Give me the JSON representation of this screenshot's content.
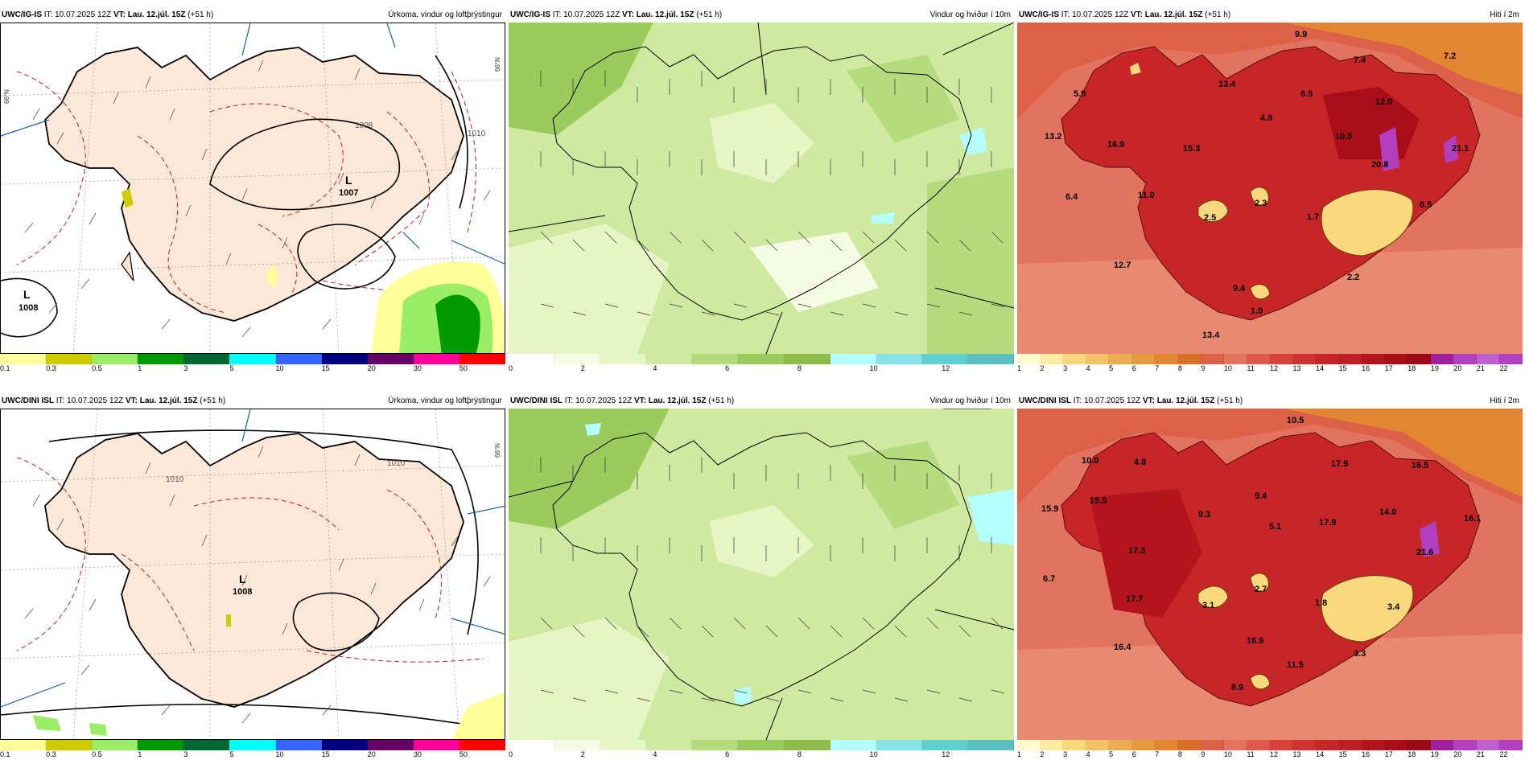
{
  "precip_colors": [
    "#ffff99",
    "#cccc00",
    "#99ee66",
    "#009900",
    "#006633",
    "#00ffff",
    "#3366ff",
    "#000080",
    "#660066",
    "#ff0099",
    "#ff0000"
  ],
  "precip_ticks": [
    "0.1",
    "0.3",
    "0.5",
    "1",
    "3",
    "5",
    "10",
    "15",
    "20",
    "30",
    "50"
  ],
  "wind_colors": [
    "#ffffff",
    "#f6fbe3",
    "#e6f5c3",
    "#cfeaa0",
    "#b4dc7c",
    "#9acb5c",
    "#8ebb49",
    "#b3ffff",
    "#86e3e6",
    "#5fcfcf",
    "#5cbfbf"
  ],
  "wind_ticks": [
    "0",
    "2",
    "4",
    "6",
    "8",
    "10",
    "12"
  ],
  "temp_colors": [
    "#fffbd0",
    "#fdeca0",
    "#f9d77d",
    "#f2c266",
    "#eeac50",
    "#e69a3e",
    "#e28632",
    "#d97028",
    "#dd6048",
    "#e2735e",
    "#df5a4a",
    "#d8403a",
    "#cf3030",
    "#c72628",
    "#bd1f22",
    "#b4151c",
    "#a80e18",
    "#9b0a14",
    "#a020a0",
    "#b040c0",
    "#c060d0",
    "#b040c0"
  ],
  "temp_ticks": [
    "1",
    "2",
    "3",
    "4",
    "5",
    "6",
    "7",
    "8",
    "9",
    "10",
    "11",
    "12",
    "13",
    "14",
    "15",
    "16",
    "17",
    "18",
    "19",
    "20",
    "21",
    "22"
  ],
  "rows": [
    {
      "model": "UWC/IG-IS",
      "precip": {
        "it": "IT: 10.07.2025 12Z",
        "vt_label": "VT: Lau. 12.júl. 15Z",
        "lead": "(+51 h)",
        "title": "Úrkoma, vindur og loftþrýstingur"
      },
      "wind": {
        "it": "IT: 10.07.2025 12Z",
        "vt_label": "VT: Lau. 12.júl. 15Z",
        "lead": "(+51 h)",
        "title": "Vindur og hviður í 10m"
      },
      "temp": {
        "it": "IT: 10.07.2025 12Z",
        "vt_label": "VT: Lau. 12.júl. 15Z",
        "lead": "(+51 h)",
        "title": "Hiti í 2m"
      }
    },
    {
      "model": "UWC/DINI ISL",
      "precip": {
        "it": "IT: 10.07.2025 12Z",
        "vt_label": "VT: Lau. 12.júl. 15Z",
        "lead": "(+51 h)",
        "title": "Úrkoma, vindur og loftþrýstingur"
      },
      "wind": {
        "it": "IT: 10.07.2025 12Z",
        "vt_label": "VT: Lau. 12.júl. 15Z",
        "lead": "(+51 h)",
        "title": "Vindur og hviður í 10m"
      },
      "temp": {
        "it": "IT: 10.07.2025 12Z",
        "vt_label": "VT: Lau. 12.júl. 15Z",
        "lead": "(+51 h)",
        "title": "Hiti í 2m"
      }
    }
  ],
  "row0_pressure": {
    "low1": "L",
    "low1_val": "1007",
    "low2": "L",
    "low2_val": "1008",
    "iso_a": "1008",
    "iso_b": "1010"
  },
  "row1_pressure": {
    "low1": "L",
    "low1_val": "1008",
    "iso_a": "1010",
    "iso_b": "1010"
  },
  "row0_temps": [
    "9.9",
    "7.4",
    "7.2",
    "13.4",
    "6.9",
    "12.0",
    "5.9",
    "4.9",
    "13.2",
    "16.9",
    "15.3",
    "10.5",
    "21.1",
    "20.8",
    "6.4",
    "11.0",
    "2.3",
    "2.5",
    "1.7",
    "6.5",
    "12.7",
    "9.4",
    "2.2",
    "1.9",
    "13.4"
  ],
  "row1_temps": [
    "10.5",
    "10.0",
    "4.8",
    "17.9",
    "16.5",
    "15.9",
    "15.5",
    "9.4",
    "9.3",
    "5.1",
    "17.9",
    "14.0",
    "16.1",
    "17.3",
    "21.6",
    "6.7",
    "17.7",
    "3.1",
    "2.7",
    "1.8",
    "3.4",
    "16.4",
    "16.9",
    "11.5",
    "3.3",
    "8.9"
  ],
  "lat_label": "66°N"
}
